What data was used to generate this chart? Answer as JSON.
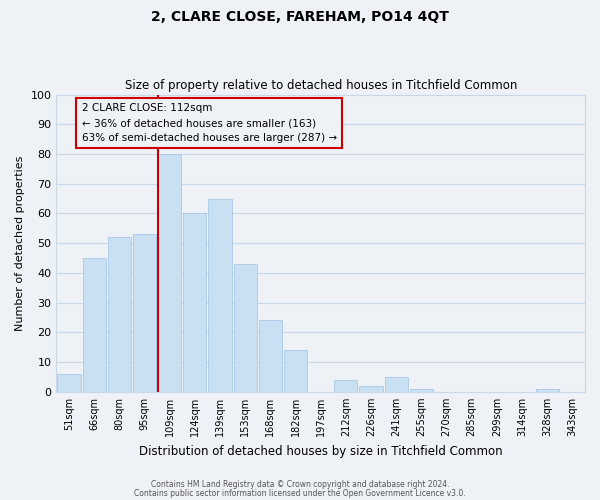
{
  "title": "2, CLARE CLOSE, FAREHAM, PO14 4QT",
  "subtitle": "Size of property relative to detached houses in Titchfield Common",
  "xlabel": "Distribution of detached houses by size in Titchfield Common",
  "ylabel": "Number of detached properties",
  "bar_labels": [
    "51sqm",
    "66sqm",
    "80sqm",
    "95sqm",
    "109sqm",
    "124sqm",
    "139sqm",
    "153sqm",
    "168sqm",
    "182sqm",
    "197sqm",
    "212sqm",
    "226sqm",
    "241sqm",
    "255sqm",
    "270sqm",
    "285sqm",
    "299sqm",
    "314sqm",
    "328sqm",
    "343sqm"
  ],
  "bar_values": [
    6,
    45,
    52,
    53,
    80,
    60,
    65,
    43,
    24,
    14,
    0,
    4,
    2,
    5,
    1,
    0,
    0,
    0,
    0,
    1,
    0
  ],
  "bar_color": "#c9dff2",
  "bar_edge_color": "#a8c8e8",
  "highlight_bar_index": 4,
  "highlight_line_color": "#cc0000",
  "ylim": [
    0,
    100
  ],
  "yticks": [
    0,
    10,
    20,
    30,
    40,
    50,
    60,
    70,
    80,
    90,
    100
  ],
  "annotation_line1": "2 CLARE CLOSE: 112sqm",
  "annotation_line2": "← 36% of detached houses are smaller (163)",
  "annotation_line3": "63% of semi-detached houses are larger (287) →",
  "annotation_box_edge_color": "#cc0000",
  "grid_color": "#c8d8e8",
  "background_color": "#eef2f7",
  "footer_line1": "Contains HM Land Registry data © Crown copyright and database right 2024.",
  "footer_line2": "Contains public sector information licensed under the Open Government Licence v3.0."
}
